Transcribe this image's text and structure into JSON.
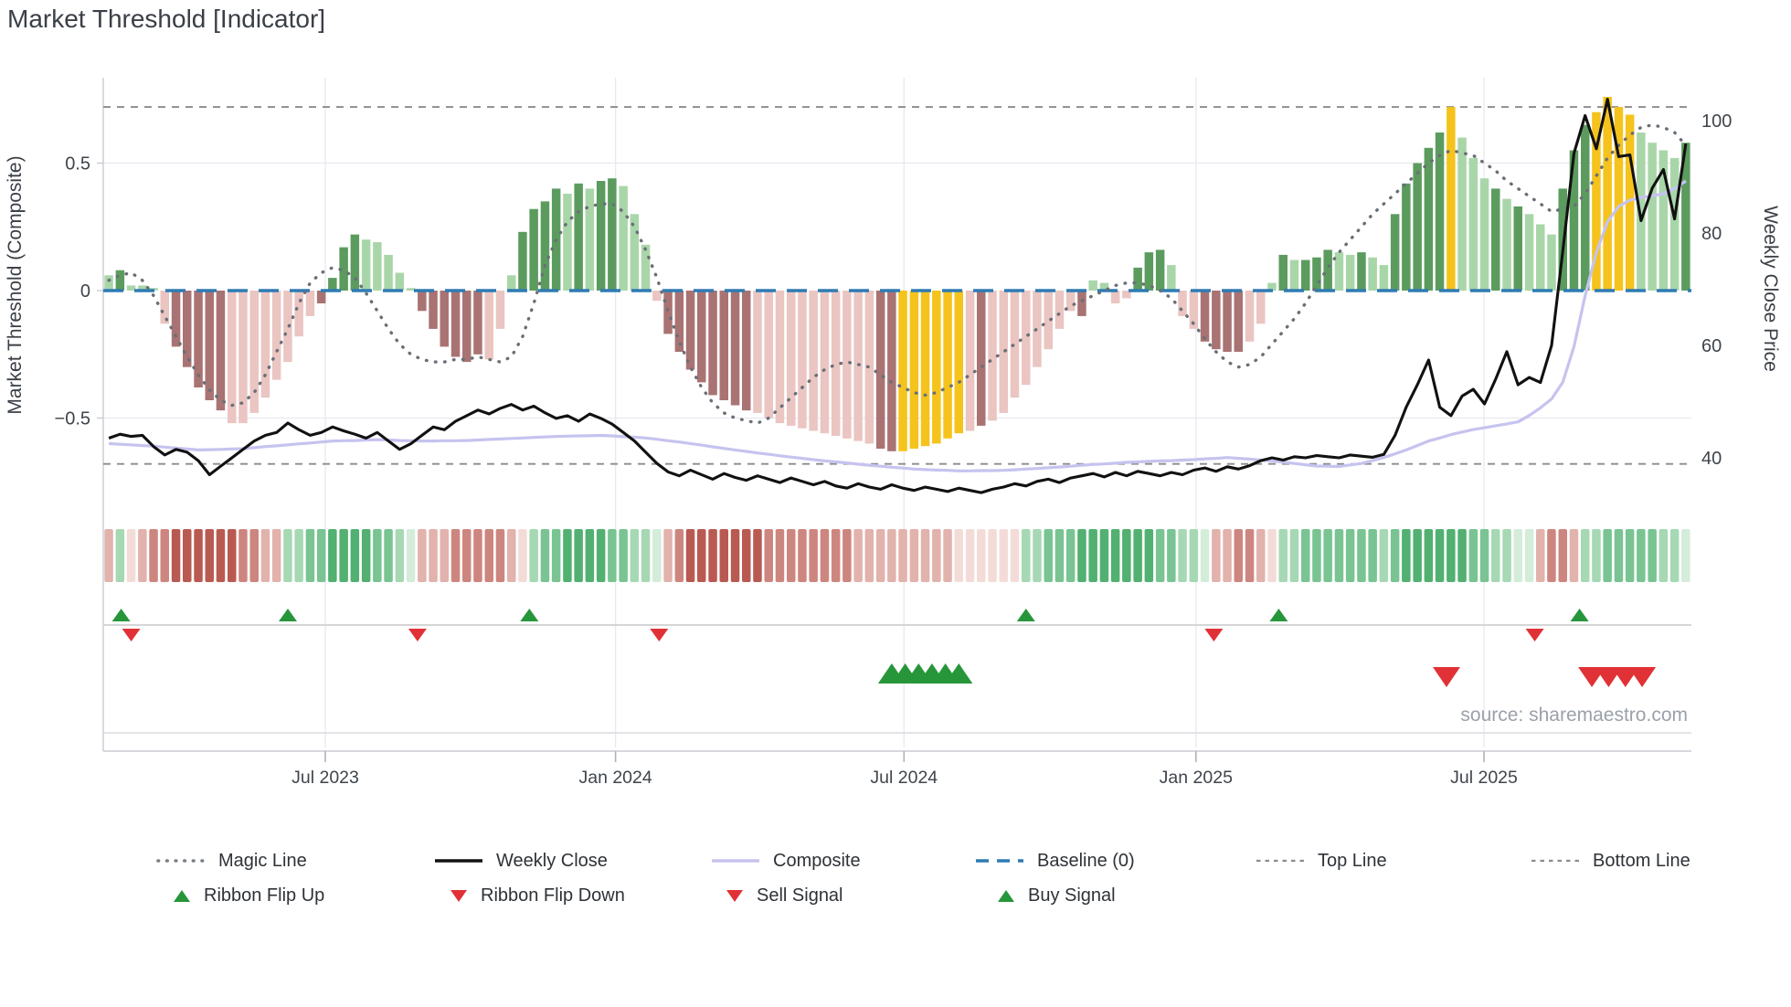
{
  "title": "Market Threshold [Indicator]",
  "source_note": "source: sharemaestro.com",
  "axes": {
    "left": {
      "label": "Market Threshold (Composite)",
      "ticks": [
        {
          "v": 0.5,
          "label": "0.5"
        },
        {
          "v": 0,
          "label": "0"
        },
        {
          "v": -0.5,
          "label": "−0.5"
        }
      ]
    },
    "right": {
      "label": "Weekly Close Price",
      "ticks": [
        {
          "v": 100,
          "label": "100"
        },
        {
          "v": 80,
          "label": "80"
        },
        {
          "v": 60,
          "label": "60"
        },
        {
          "v": 40,
          "label": "40"
        }
      ]
    },
    "x": {
      "ticks": [
        {
          "week": 19.35,
          "label": "Jul 2023"
        },
        {
          "week": 45.3,
          "label": "Jan 2024"
        },
        {
          "week": 71.1,
          "label": "Jul 2024"
        },
        {
          "week": 97.2,
          "label": "Jan 2025"
        },
        {
          "week": 122.95,
          "label": "Jul 2025"
        }
      ]
    }
  },
  "legend": {
    "row1": [
      {
        "label": "Magic Line"
      },
      {
        "label": "Weekly Close"
      },
      {
        "label": "Composite"
      },
      {
        "label": "Baseline (0)"
      },
      {
        "label": "Top Line"
      },
      {
        "label": "Bottom Line"
      }
    ],
    "row2": [
      {
        "label": "Ribbon Flip Up"
      },
      {
        "label": "Ribbon Flip Down"
      },
      {
        "label": "Sell Signal"
      },
      {
        "label": "Buy Signal"
      }
    ]
  },
  "colors": {
    "bars": {
      "dg": "#5b9c5e",
      "lg": "#a9d6a9",
      "dr": "#a97373",
      "lr": "#eac5c2",
      "y": "#f5c31c"
    },
    "ribbon": {
      "p0": "#f3dcd8",
      "p1": "#e2b2ac",
      "p2": "#cd867f",
      "p3": "#b95a52",
      "g0": "#d4ecda",
      "g1": "#a6d8b4",
      "g2": "#79c492",
      "g3": "#52b071"
    },
    "baseline": "#2e7bb4",
    "magic": "#6a6f76",
    "weekly_close": "#111111",
    "composite": "#c6c3ef",
    "threshold": "#8c8c8c",
    "signal_green": "#27963b",
    "signal_red": "#e03236",
    "grid": "#e8e8f0",
    "axis": "#c8ccd2",
    "text": "#3f454c",
    "muted": "#9ba1a9"
  },
  "chart_data": {
    "type": "combo",
    "title": "Market Threshold [Indicator]",
    "weeks": 142,
    "ylim_left": [
      -0.835,
      0.835
    ],
    "ylim_right": [
      31.9,
      107.7
    ],
    "baseline": 0,
    "top_line": 0.72,
    "bottom_line": -0.68,
    "legend_position": "bottom",
    "histogram": {
      "type": "bar",
      "axis": "left",
      "values": [
        0.06,
        0.08,
        0.02,
        0.02,
        0.01,
        -0.13,
        -0.22,
        -0.3,
        -0.38,
        -0.43,
        -0.47,
        -0.52,
        -0.52,
        -0.48,
        -0.42,
        -0.35,
        -0.28,
        -0.18,
        -0.1,
        -0.05,
        0.05,
        0.17,
        0.22,
        0.2,
        0.19,
        0.14,
        0.07,
        0.01,
        -0.08,
        -0.15,
        -0.22,
        -0.26,
        -0.28,
        -0.25,
        -0.27,
        -0.15,
        0.06,
        0.23,
        0.32,
        0.35,
        0.4,
        0.38,
        0.42,
        0.4,
        0.43,
        0.44,
        0.41,
        0.3,
        0.18,
        -0.04,
        -0.17,
        -0.24,
        -0.31,
        -0.36,
        -0.41,
        -0.43,
        -0.45,
        -0.47,
        -0.48,
        -0.5,
        -0.52,
        -0.53,
        -0.54,
        -0.55,
        -0.56,
        -0.57,
        -0.58,
        -0.59,
        -0.6,
        -0.62,
        -0.63,
        -0.63,
        -0.62,
        -0.61,
        -0.6,
        -0.58,
        -0.56,
        -0.55,
        -0.53,
        -0.51,
        -0.48,
        -0.42,
        -0.37,
        -0.3,
        -0.23,
        -0.15,
        -0.08,
        -0.1,
        0.04,
        0.03,
        -0.05,
        -0.03,
        0.09,
        0.15,
        0.16,
        0.1,
        -0.1,
        -0.15,
        -0.2,
        -0.23,
        -0.24,
        -0.24,
        -0.2,
        -0.13,
        0.03,
        0.14,
        0.12,
        0.12,
        0.13,
        0.16,
        0.15,
        0.14,
        0.15,
        0.13,
        0.1,
        0.3,
        0.42,
        0.5,
        0.56,
        0.62,
        0.72,
        0.6,
        0.52,
        0.44,
        0.4,
        0.36,
        0.33,
        0.3,
        0.26,
        0.22,
        0.4,
        0.55,
        0.65,
        0.7,
        0.76,
        0.72,
        0.69,
        0.62,
        0.58,
        0.55,
        0.52,
        0.58
      ],
      "palette": [
        "lg",
        "dg",
        "lg",
        "lg",
        "lg",
        "lr",
        "dr",
        "dr",
        "dr",
        "dr",
        "dr",
        "lr",
        "lr",
        "lr",
        "lr",
        "lr",
        "lr",
        "lr",
        "lr",
        "dr",
        "dg",
        "dg",
        "dg",
        "lg",
        "lg",
        "lg",
        "lg",
        "lg",
        "dr",
        "dr",
        "dr",
        "dr",
        "dr",
        "dr",
        "lr",
        "lr",
        "lg",
        "dg",
        "dg",
        "dg",
        "dg",
        "lg",
        "dg",
        "lg",
        "dg",
        "dg",
        "lg",
        "lg",
        "lg",
        "lr",
        "dr",
        "dr",
        "dr",
        "dr",
        "dr",
        "dr",
        "dr",
        "dr",
        "lr",
        "lr",
        "lr",
        "lr",
        "lr",
        "lr",
        "lr",
        "lr",
        "lr",
        "lr",
        "lr",
        "dr",
        "dr",
        "y",
        "y",
        "y",
        "y",
        "y",
        "y",
        "lr",
        "dr",
        "lr",
        "lr",
        "lr",
        "lr",
        "lr",
        "lr",
        "lr",
        "lr",
        "dr",
        "lg",
        "lg",
        "lr",
        "lr",
        "dg",
        "dg",
        "dg",
        "lg",
        "lr",
        "lr",
        "dr",
        "dr",
        "dr",
        "dr",
        "lr",
        "lr",
        "lg",
        "dg",
        "lg",
        "dg",
        "dg",
        "dg",
        "lg",
        "lg",
        "dg",
        "lg",
        "lg",
        "dg",
        "dg",
        "dg",
        "dg",
        "dg",
        "y",
        "lg",
        "lg",
        "lg",
        "dg",
        "lg",
        "dg",
        "lg",
        "lg",
        "lg",
        "dg",
        "dg",
        "dg",
        "y",
        "y",
        "y",
        "y",
        "lg",
        "lg",
        "lg",
        "lg",
        "dg"
      ]
    },
    "magic_line": {
      "type": "line",
      "axis": "left",
      "values": [
        0.04,
        0.06,
        0.07,
        0.04,
        -0.02,
        -0.1,
        -0.18,
        -0.26,
        -0.33,
        -0.39,
        -0.43,
        -0.45,
        -0.44,
        -0.4,
        -0.33,
        -0.24,
        -0.15,
        -0.05,
        0.03,
        0.07,
        0.09,
        0.08,
        0.05,
        -0.01,
        -0.08,
        -0.15,
        -0.21,
        -0.25,
        -0.27,
        -0.28,
        -0.28,
        -0.27,
        -0.27,
        -0.26,
        -0.27,
        -0.28,
        -0.26,
        -0.18,
        -0.05,
        0.1,
        0.2,
        0.27,
        0.31,
        0.33,
        0.34,
        0.34,
        0.31,
        0.25,
        0.16,
        0.05,
        -0.08,
        -0.2,
        -0.3,
        -0.38,
        -0.44,
        -0.48,
        -0.5,
        -0.51,
        -0.52,
        -0.5,
        -0.46,
        -0.42,
        -0.38,
        -0.34,
        -0.31,
        -0.29,
        -0.28,
        -0.29,
        -0.3,
        -0.33,
        -0.36,
        -0.38,
        -0.4,
        -0.41,
        -0.4,
        -0.38,
        -0.36,
        -0.33,
        -0.3,
        -0.27,
        -0.24,
        -0.21,
        -0.18,
        -0.15,
        -0.12,
        -0.09,
        -0.06,
        -0.04,
        -0.02,
        0.0,
        0.02,
        0.03,
        0.03,
        0.02,
        0.0,
        -0.03,
        -0.08,
        -0.13,
        -0.19,
        -0.24,
        -0.28,
        -0.3,
        -0.29,
        -0.26,
        -0.21,
        -0.16,
        -0.11,
        -0.05,
        0.02,
        0.09,
        0.15,
        0.2,
        0.25,
        0.3,
        0.34,
        0.38,
        0.42,
        0.46,
        0.5,
        0.53,
        0.55,
        0.54,
        0.53,
        0.5,
        0.47,
        0.43,
        0.4,
        0.37,
        0.34,
        0.31,
        0.32,
        0.33,
        0.38,
        0.45,
        0.52,
        0.57,
        0.61,
        0.64,
        0.65,
        0.64,
        0.62,
        0.57
      ]
    },
    "composite": {
      "type": "line",
      "axis": "left",
      "values": [
        -0.6,
        -0.603,
        -0.605,
        -0.608,
        -0.61,
        -0.614,
        -0.618,
        -0.621,
        -0.625,
        -0.624,
        -0.623,
        -0.621,
        -0.62,
        -0.616,
        -0.612,
        -0.609,
        -0.605,
        -0.601,
        -0.598,
        -0.594,
        -0.59,
        -0.589,
        -0.588,
        -0.586,
        -0.585,
        -0.586,
        -0.588,
        -0.589,
        -0.59,
        -0.59,
        -0.589,
        -0.589,
        -0.588,
        -0.586,
        -0.584,
        -0.582,
        -0.58,
        -0.578,
        -0.576,
        -0.574,
        -0.572,
        -0.571,
        -0.57,
        -0.569,
        -0.568,
        -0.57,
        -0.573,
        -0.575,
        -0.578,
        -0.583,
        -0.589,
        -0.594,
        -0.6,
        -0.606,
        -0.613,
        -0.619,
        -0.625,
        -0.631,
        -0.637,
        -0.642,
        -0.648,
        -0.653,
        -0.658,
        -0.663,
        -0.668,
        -0.672,
        -0.676,
        -0.681,
        -0.685,
        -0.689,
        -0.693,
        -0.696,
        -0.7,
        -0.702,
        -0.704,
        -0.705,
        -0.707,
        -0.707,
        -0.706,
        -0.706,
        -0.705,
        -0.703,
        -0.7,
        -0.698,
        -0.695,
        -0.692,
        -0.689,
        -0.685,
        -0.682,
        -0.68,
        -0.677,
        -0.674,
        -0.672,
        -0.67,
        -0.668,
        -0.667,
        -0.665,
        -0.663,
        -0.66,
        -0.658,
        -0.655,
        -0.658,
        -0.661,
        -0.665,
        -0.668,
        -0.673,
        -0.678,
        -0.683,
        -0.688,
        -0.689,
        -0.69,
        -0.684,
        -0.678,
        -0.667,
        -0.655,
        -0.64,
        -0.625,
        -0.608,
        -0.59,
        -0.578,
        -0.565,
        -0.555,
        -0.545,
        -0.538,
        -0.53,
        -0.523,
        -0.515,
        -0.49,
        -0.46,
        -0.425,
        -0.36,
        -0.22,
        -0.02,
        0.15,
        0.27,
        0.33,
        0.355,
        0.365,
        0.372,
        0.38,
        0.4,
        0.43
      ]
    },
    "weekly_close": {
      "type": "line",
      "axis": "right",
      "values": [
        43.5,
        44.2,
        43.8,
        44.0,
        42.0,
        40.5,
        41.5,
        41.0,
        39.5,
        37.0,
        38.5,
        40.0,
        41.5,
        43.0,
        44.0,
        44.5,
        46.2,
        45.0,
        44.0,
        44.5,
        45.5,
        44.8,
        44.2,
        43.5,
        44.5,
        43.0,
        41.5,
        42.5,
        44.0,
        45.5,
        45.0,
        46.5,
        47.5,
        48.5,
        47.8,
        48.8,
        49.5,
        48.5,
        49.2,
        48.0,
        47.0,
        47.5,
        46.5,
        47.8,
        47.0,
        46.0,
        44.5,
        43.0,
        41.0,
        39.0,
        37.5,
        36.8,
        37.8,
        37.0,
        36.2,
        37.2,
        36.5,
        36.0,
        36.8,
        36.2,
        35.6,
        36.4,
        35.8,
        35.2,
        35.8,
        35.0,
        34.6,
        35.4,
        34.8,
        34.4,
        35.2,
        34.6,
        34.2,
        34.8,
        34.4,
        34.0,
        34.6,
        34.2,
        33.8,
        34.4,
        34.8,
        35.4,
        35.0,
        35.8,
        36.2,
        35.6,
        36.4,
        36.8,
        37.2,
        36.6,
        37.4,
        36.8,
        37.6,
        37.2,
        36.8,
        37.4,
        37.0,
        37.8,
        38.2,
        37.6,
        38.4,
        38.0,
        38.6,
        39.5,
        40.0,
        39.6,
        40.2,
        40.0,
        40.4,
        40.2,
        40.0,
        40.5,
        40.3,
        40.1,
        40.6,
        44.0,
        49.0,
        53.0,
        57.4,
        49.0,
        47.5,
        51.0,
        52.2,
        49.6,
        54.0,
        58.9,
        53.0,
        54.3,
        53.4,
        60.0,
        76.7,
        94.2,
        100.9,
        95.0,
        103.8,
        93.6,
        93.9,
        82.2,
        88.0,
        91.3,
        82.5,
        95.9
      ]
    },
    "ribbon": {
      "type": "heatmap",
      "cells": [
        "p1",
        "g1",
        "p0",
        "p1",
        "p2",
        "p2",
        "p3",
        "p3",
        "p3",
        "p3",
        "p3",
        "p3",
        "p2",
        "p2",
        "p1",
        "p1",
        "g1",
        "g1",
        "g2",
        "g2",
        "g3",
        "g3",
        "g3",
        "g3",
        "g2",
        "g2",
        "g1",
        "g0",
        "p1",
        "p1",
        "p1",
        "p2",
        "p2",
        "p2",
        "p2",
        "p2",
        "p1",
        "p0",
        "g1",
        "g2",
        "g2",
        "g3",
        "g3",
        "g3",
        "g3",
        "g2",
        "g2",
        "g1",
        "g1",
        "g0",
        "p1",
        "p2",
        "p3",
        "p3",
        "p3",
        "p3",
        "p3",
        "p3",
        "p3",
        "p2",
        "p2",
        "p2",
        "p2",
        "p2",
        "p2",
        "p2",
        "p2",
        "p1",
        "p1",
        "p1",
        "p1",
        "p1",
        "p1",
        "p1",
        "p1",
        "p1",
        "p0",
        "p0",
        "p0",
        "p0",
        "p0",
        "p0",
        "g1",
        "g1",
        "g2",
        "g2",
        "g2",
        "g3",
        "g3",
        "g3",
        "g3",
        "g3",
        "g3",
        "g3",
        "g2",
        "g2",
        "g1",
        "g1",
        "g0",
        "p1",
        "p1",
        "p2",
        "p2",
        "p1",
        "p0",
        "g1",
        "g1",
        "g2",
        "g2",
        "g2",
        "g2",
        "g2",
        "g2",
        "g2",
        "g1",
        "g2",
        "g3",
        "g3",
        "g3",
        "g3",
        "g3",
        "g3",
        "g2",
        "g2",
        "g1",
        "g1",
        "g0",
        "g0",
        "p1",
        "p2",
        "p2",
        "p1",
        "g1",
        "g1",
        "g2",
        "g2",
        "g2",
        "g2",
        "g2",
        "g1",
        "g1",
        "g0"
      ]
    },
    "signals": {
      "ribbon_flip_up_weeks": [
        1.1,
        16.0,
        37.6,
        82.0,
        104.6,
        131.5
      ],
      "ribbon_flip_down_weeks": [
        2.0,
        27.6,
        49.2,
        98.8,
        127.5
      ],
      "buy_signal_weeks": [
        70.0,
        71.2,
        72.4,
        73.6,
        74.8,
        76.0
      ],
      "sell_signal_weeks": [
        119.6,
        132.6,
        134.1,
        135.6,
        137.1
      ]
    }
  }
}
